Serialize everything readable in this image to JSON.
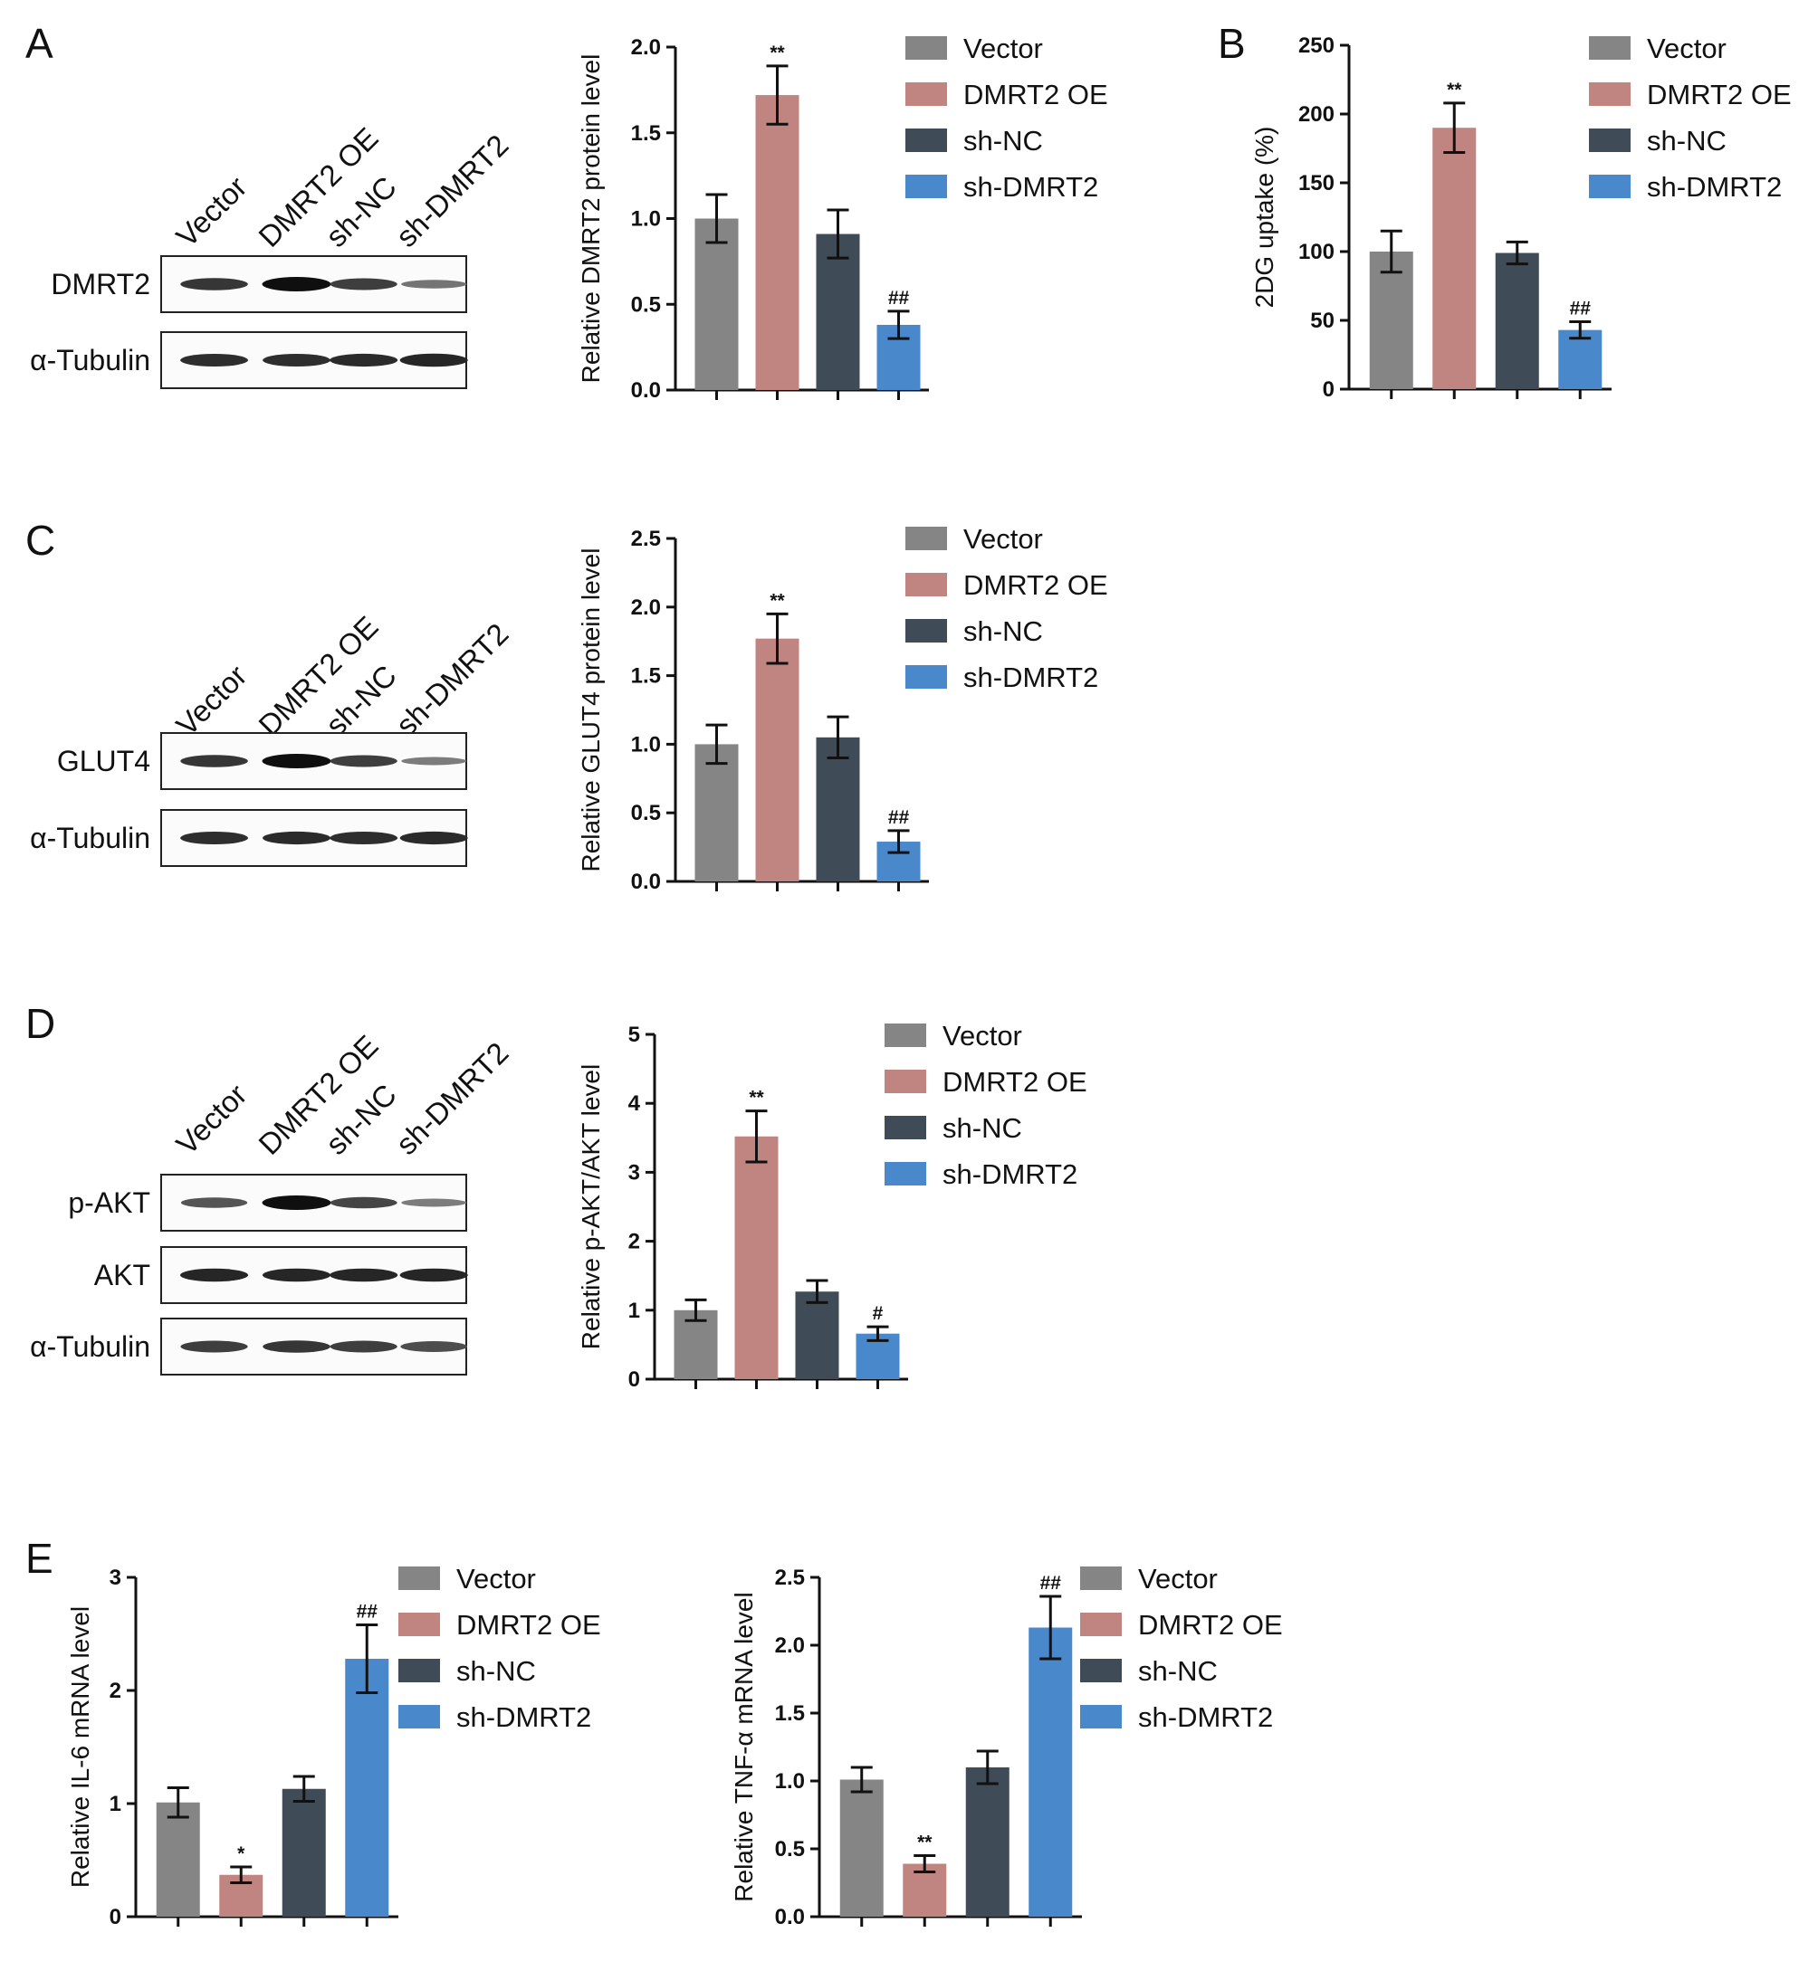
{
  "panels": {
    "A": "A",
    "B": "B",
    "C": "C",
    "D": "D",
    "E": "E"
  },
  "groups": [
    "Vector",
    "DMRT2 OE",
    "sh-NC",
    "sh-DMRT2"
  ],
  "colors": {
    "Vector": "#858585",
    "DMRT2 OE": "#c08580",
    "sh-NC": "#3f4b56",
    "sh-DMRT2": "#4a88cc"
  },
  "blots": {
    "A": {
      "rows": [
        "DMRT2",
        "α-Tubulin"
      ],
      "band_intensity": [
        [
          0.75,
          1.0,
          0.7,
          0.35
        ],
        [
          0.8,
          0.8,
          0.82,
          0.85
        ]
      ]
    },
    "C": {
      "rows": [
        "GLUT4",
        "α-Tubulin"
      ],
      "band_intensity": [
        [
          0.75,
          1.0,
          0.7,
          0.3
        ],
        [
          0.8,
          0.82,
          0.8,
          0.82
        ]
      ]
    },
    "D": {
      "rows": [
        "p-AKT",
        "AKT",
        "α-Tubulin"
      ],
      "band_intensity": [
        [
          0.55,
          1.0,
          0.65,
          0.3
        ],
        [
          0.85,
          0.85,
          0.85,
          0.85
        ],
        [
          0.7,
          0.75,
          0.7,
          0.6
        ]
      ]
    }
  },
  "chart_data": [
    {
      "id": "A",
      "type": "bar",
      "ylabel": "Relative DMRT2 protein level",
      "ylim": [
        0,
        2.0
      ],
      "ticks": [
        "0.0",
        "0.5",
        "1.0",
        "1.5",
        "2.0"
      ],
      "categories": [
        "Vector",
        "DMRT2 OE",
        "sh-NC",
        "sh-DMRT2"
      ],
      "values": [
        1.0,
        1.72,
        0.91,
        0.38
      ],
      "errors": [
        0.14,
        0.17,
        0.14,
        0.08
      ],
      "annotations": [
        "",
        "**",
        "",
        "##"
      ]
    },
    {
      "id": "B",
      "type": "bar",
      "ylabel": "2DG uptake (%)",
      "ylim": [
        0,
        250
      ],
      "ticks": [
        "0",
        "50",
        "100",
        "150",
        "200",
        "250"
      ],
      "categories": [
        "Vector",
        "DMRT2 OE",
        "sh-NC",
        "sh-DMRT2"
      ],
      "values": [
        100,
        190,
        99,
        43
      ],
      "errors": [
        15,
        18,
        8,
        6
      ],
      "annotations": [
        "",
        "**",
        "",
        "##"
      ]
    },
    {
      "id": "C",
      "type": "bar",
      "ylabel": "Relative GLUT4 protein level",
      "ylim": [
        0,
        2.5
      ],
      "ticks": [
        "0.0",
        "0.5",
        "1.0",
        "1.5",
        "2.0",
        "2.5"
      ],
      "categories": [
        "Vector",
        "DMRT2 OE",
        "sh-NC",
        "sh-DMRT2"
      ],
      "values": [
        1.0,
        1.77,
        1.05,
        0.29
      ],
      "errors": [
        0.14,
        0.18,
        0.15,
        0.08
      ],
      "annotations": [
        "",
        "**",
        "",
        "##"
      ]
    },
    {
      "id": "D",
      "type": "bar",
      "ylabel": "Relative p-AKT/AKT level",
      "ylim": [
        0,
        5
      ],
      "ticks": [
        "0",
        "1",
        "2",
        "3",
        "4",
        "5"
      ],
      "categories": [
        "Vector",
        "DMRT2 OE",
        "sh-NC",
        "sh-DMRT2"
      ],
      "values": [
        1.0,
        3.52,
        1.27,
        0.66
      ],
      "errors": [
        0.15,
        0.37,
        0.16,
        0.1
      ],
      "annotations": [
        "",
        "**",
        "",
        "#"
      ]
    },
    {
      "id": "E1",
      "type": "bar",
      "ylabel": "Relative IL-6 mRNA level",
      "ylim": [
        0,
        3
      ],
      "ticks": [
        "0",
        "1",
        "2",
        "3"
      ],
      "categories": [
        "Vector",
        "DMRT2 OE",
        "sh-NC",
        "sh-DMRT2"
      ],
      "values": [
        1.01,
        0.37,
        1.13,
        2.28
      ],
      "errors": [
        0.13,
        0.07,
        0.11,
        0.3
      ],
      "annotations": [
        "",
        "*",
        "",
        "##"
      ]
    },
    {
      "id": "E2",
      "type": "bar",
      "ylabel": "Relative TNF-α  mRNA level",
      "ylim": [
        0,
        2.5
      ],
      "ticks": [
        "0.0",
        "0.5",
        "1.0",
        "1.5",
        "2.0",
        "2.5"
      ],
      "categories": [
        "Vector",
        "DMRT2 OE",
        "sh-NC",
        "sh-DMRT2"
      ],
      "values": [
        1.01,
        0.39,
        1.1,
        2.13
      ],
      "errors": [
        0.09,
        0.06,
        0.12,
        0.23
      ],
      "annotations": [
        "",
        "**",
        "",
        "##"
      ]
    }
  ]
}
